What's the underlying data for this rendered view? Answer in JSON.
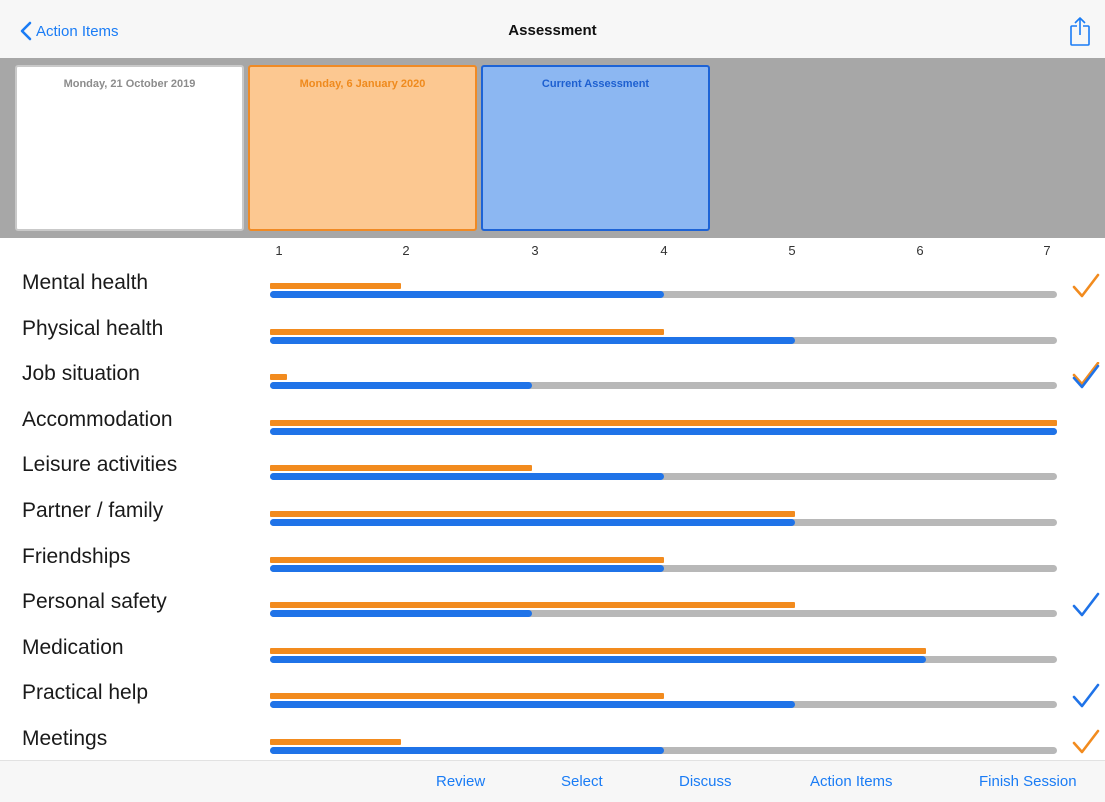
{
  "navbar": {
    "back_label": "Action Items",
    "title": "Assessment",
    "back_icon": "chevron-left-icon",
    "share_icon": "share-icon"
  },
  "assessments": [
    {
      "label": "Monday, 21 October 2019",
      "state": "past"
    },
    {
      "label": "Monday, 6 January 2020",
      "state": "previous"
    },
    {
      "label": "Current Assessment",
      "state": "current"
    }
  ],
  "scale": {
    "min": 1,
    "max": 7,
    "ticks": [
      "1",
      "2",
      "3",
      "4",
      "5",
      "6",
      "7"
    ]
  },
  "colors": {
    "accent": "#1a7cf5",
    "previous": "#f28b1e",
    "current": "#1f73e8",
    "track": "#b8b8b8"
  },
  "rows": [
    {
      "label": "Mental health",
      "previous": 2,
      "current": 4,
      "check": "orange"
    },
    {
      "label": "Physical health",
      "previous": 4,
      "current": 5,
      "check": ""
    },
    {
      "label": "Job situation",
      "previous": 1.13,
      "current": 3,
      "check": "both"
    },
    {
      "label": "Accommodation",
      "previous": 7,
      "current": 7,
      "check": ""
    },
    {
      "label": "Leisure activities",
      "previous": 3,
      "current": 4,
      "check": ""
    },
    {
      "label": "Partner / family",
      "previous": 5,
      "current": 5,
      "check": ""
    },
    {
      "label": "Friendships",
      "previous": 4,
      "current": 4,
      "check": ""
    },
    {
      "label": "Personal safety",
      "previous": 5,
      "current": 3,
      "check": "blue"
    },
    {
      "label": "Medication",
      "previous": 6,
      "current": 6,
      "check": ""
    },
    {
      "label": "Practical help",
      "previous": 4,
      "current": 5,
      "check": "blue"
    },
    {
      "label": "Meetings",
      "previous": 2,
      "current": 4,
      "check": "orange"
    }
  ],
  "toolbar": {
    "items": [
      "Review",
      "Select",
      "Discuss",
      "Action Items",
      "Finish Session"
    ]
  }
}
